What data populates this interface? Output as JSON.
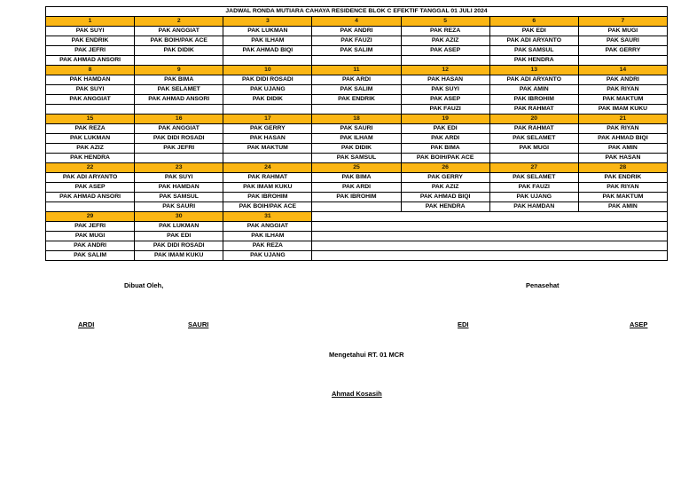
{
  "title": "JADWAL RONDA MUTIARA CAHAYA RESIDENCE BLOK C EFEKTIF TANGGAL 01 JULI 2024",
  "colors": {
    "date_header_bg": "#FBB614",
    "border": "#000000",
    "page_bg": "#FFFFFF"
  },
  "weeks": [
    {
      "dates": [
        "1",
        "2",
        "3",
        "4",
        "5",
        "6",
        "7"
      ],
      "rows": [
        [
          "PAK SUYI",
          "PAK ANGGIAT",
          "PAK LUKMAN",
          "PAK ANDRI",
          "PAK REZA",
          "PAK EDI",
          "PAK MUGI"
        ],
        [
          "PAK ENDRIK",
          "PAK BOIH/PAK ACE",
          "PAK ILHAM",
          "PAK FAUZI",
          "PAK AZIZ",
          "PAK ADI ARYANTO",
          "PAK SAURI"
        ],
        [
          "PAK JEFRI",
          "PAK DIDIK",
          "PAK AHMAD BIQI",
          "PAK SALIM",
          "PAK ASEP",
          "PAK SAMSUL",
          "PAK GERRY"
        ],
        [
          "PAK AHMAD ANSORI",
          "",
          "",
          "",
          "",
          "PAK HENDRA",
          ""
        ]
      ]
    },
    {
      "dates": [
        "8",
        "9",
        "10",
        "11",
        "12",
        "13",
        "14"
      ],
      "rows": [
        [
          "PAK HAMDAN",
          "PAK BIMA",
          "PAK DIDI ROSADI",
          "PAK ARDI",
          "PAK HASAN",
          "PAK ADI ARYANTO",
          "PAK ANDRI"
        ],
        [
          "PAK SUYI",
          "PAK SELAMET",
          "PAK UJANG",
          "PAK SALIM",
          "PAK SUYI",
          "PAK AMIN",
          "PAK RIYAN"
        ],
        [
          "PAK ANGGIAT",
          "PAK AHMAD ANSORI",
          "PAK DIDIK",
          "PAK ENDRIK",
          "PAK ASEP",
          "PAK IBROHIM",
          "PAK MAKTUM"
        ],
        [
          "",
          "",
          "",
          "",
          "PAK FAUZI",
          "PAK RAHMAT",
          "PAK IMAM KUKU"
        ]
      ]
    },
    {
      "dates": [
        "15",
        "16",
        "17",
        "18",
        "19",
        "20",
        "21"
      ],
      "rows": [
        [
          "PAK REZA",
          "PAK ANGGIAT",
          "PAK GERRY",
          "PAK SAURI",
          "PAK EDI",
          "PAK RAHMAT",
          "PAK RIYAN"
        ],
        [
          "PAK LUKMAN",
          "PAK DIDI ROSADI",
          "PAK HASAN",
          "PAK ILHAM",
          "PAK ARDI",
          "PAK SELAMET",
          "PAK AHMAD BIQI"
        ],
        [
          "PAK AZIZ",
          "PAK JEFRI",
          "PAK MAKTUM",
          "PAK DIDIK",
          "PAK BIMA",
          "PAK MUGI",
          "PAK AMIN"
        ],
        [
          "PAK HENDRA",
          "",
          "",
          "PAK SAMSUL",
          "PAK BOIH/PAK ACE",
          "",
          "PAK HASAN"
        ]
      ]
    },
    {
      "dates": [
        "22",
        "23",
        "24",
        "25",
        "26",
        "27",
        "28"
      ],
      "rows": [
        [
          "PAK ADI ARYANTO",
          "PAK SUYI",
          "PAK RAHMAT",
          "PAK BIMA",
          "PAK GERRY",
          "PAK SELAMET",
          "PAK ENDRIK"
        ],
        [
          "PAK ASEP",
          "PAK HAMDAN",
          "PAK IMAM KUKU",
          "PAK ARDI",
          "PAK AZIZ",
          "PAK FAUZI",
          "PAK RIYAN"
        ],
        [
          "PAK AHMAD ANSORI",
          "PAK SAMSUL",
          "PAK IBROHIM",
          "PAK IBROHIM",
          "PAK AHMAD BIQI",
          "PAK UJANG",
          "PAK MAKTUM"
        ],
        [
          "",
          "PAK SAURI",
          "PAK BOIH/PAK ACE",
          "",
          "PAK HENDRA",
          "PAK HAMDAN",
          "PAK AMIN"
        ]
      ]
    },
    {
      "dates": [
        "29",
        "30",
        "31"
      ],
      "rows": [
        [
          "PAK JEFRI",
          "PAK LUKMAN",
          "PAK ANGGIAT"
        ],
        [
          "PAK MUGI",
          "PAK EDI",
          "PAK ILHAM"
        ],
        [
          "PAK ANDRI",
          "PAK DIDI ROSADI",
          "PAK REZA"
        ],
        [
          "PAK SALIM",
          "PAK IMAM KUKU",
          "PAK UJANG"
        ]
      ]
    }
  ],
  "footer": {
    "dibuat_oleh_label": "Dibuat Oleh,",
    "penasehat_label": "Penasehat",
    "signature_ardi": "ARDI",
    "signature_sauri": "SAURI",
    "signature_edi": "EDI",
    "signature_asep": "ASEP",
    "mengetahui_label": "Mengetahui RT. 01 MCR",
    "rt_head_name": "Ahmad Kosasih"
  }
}
